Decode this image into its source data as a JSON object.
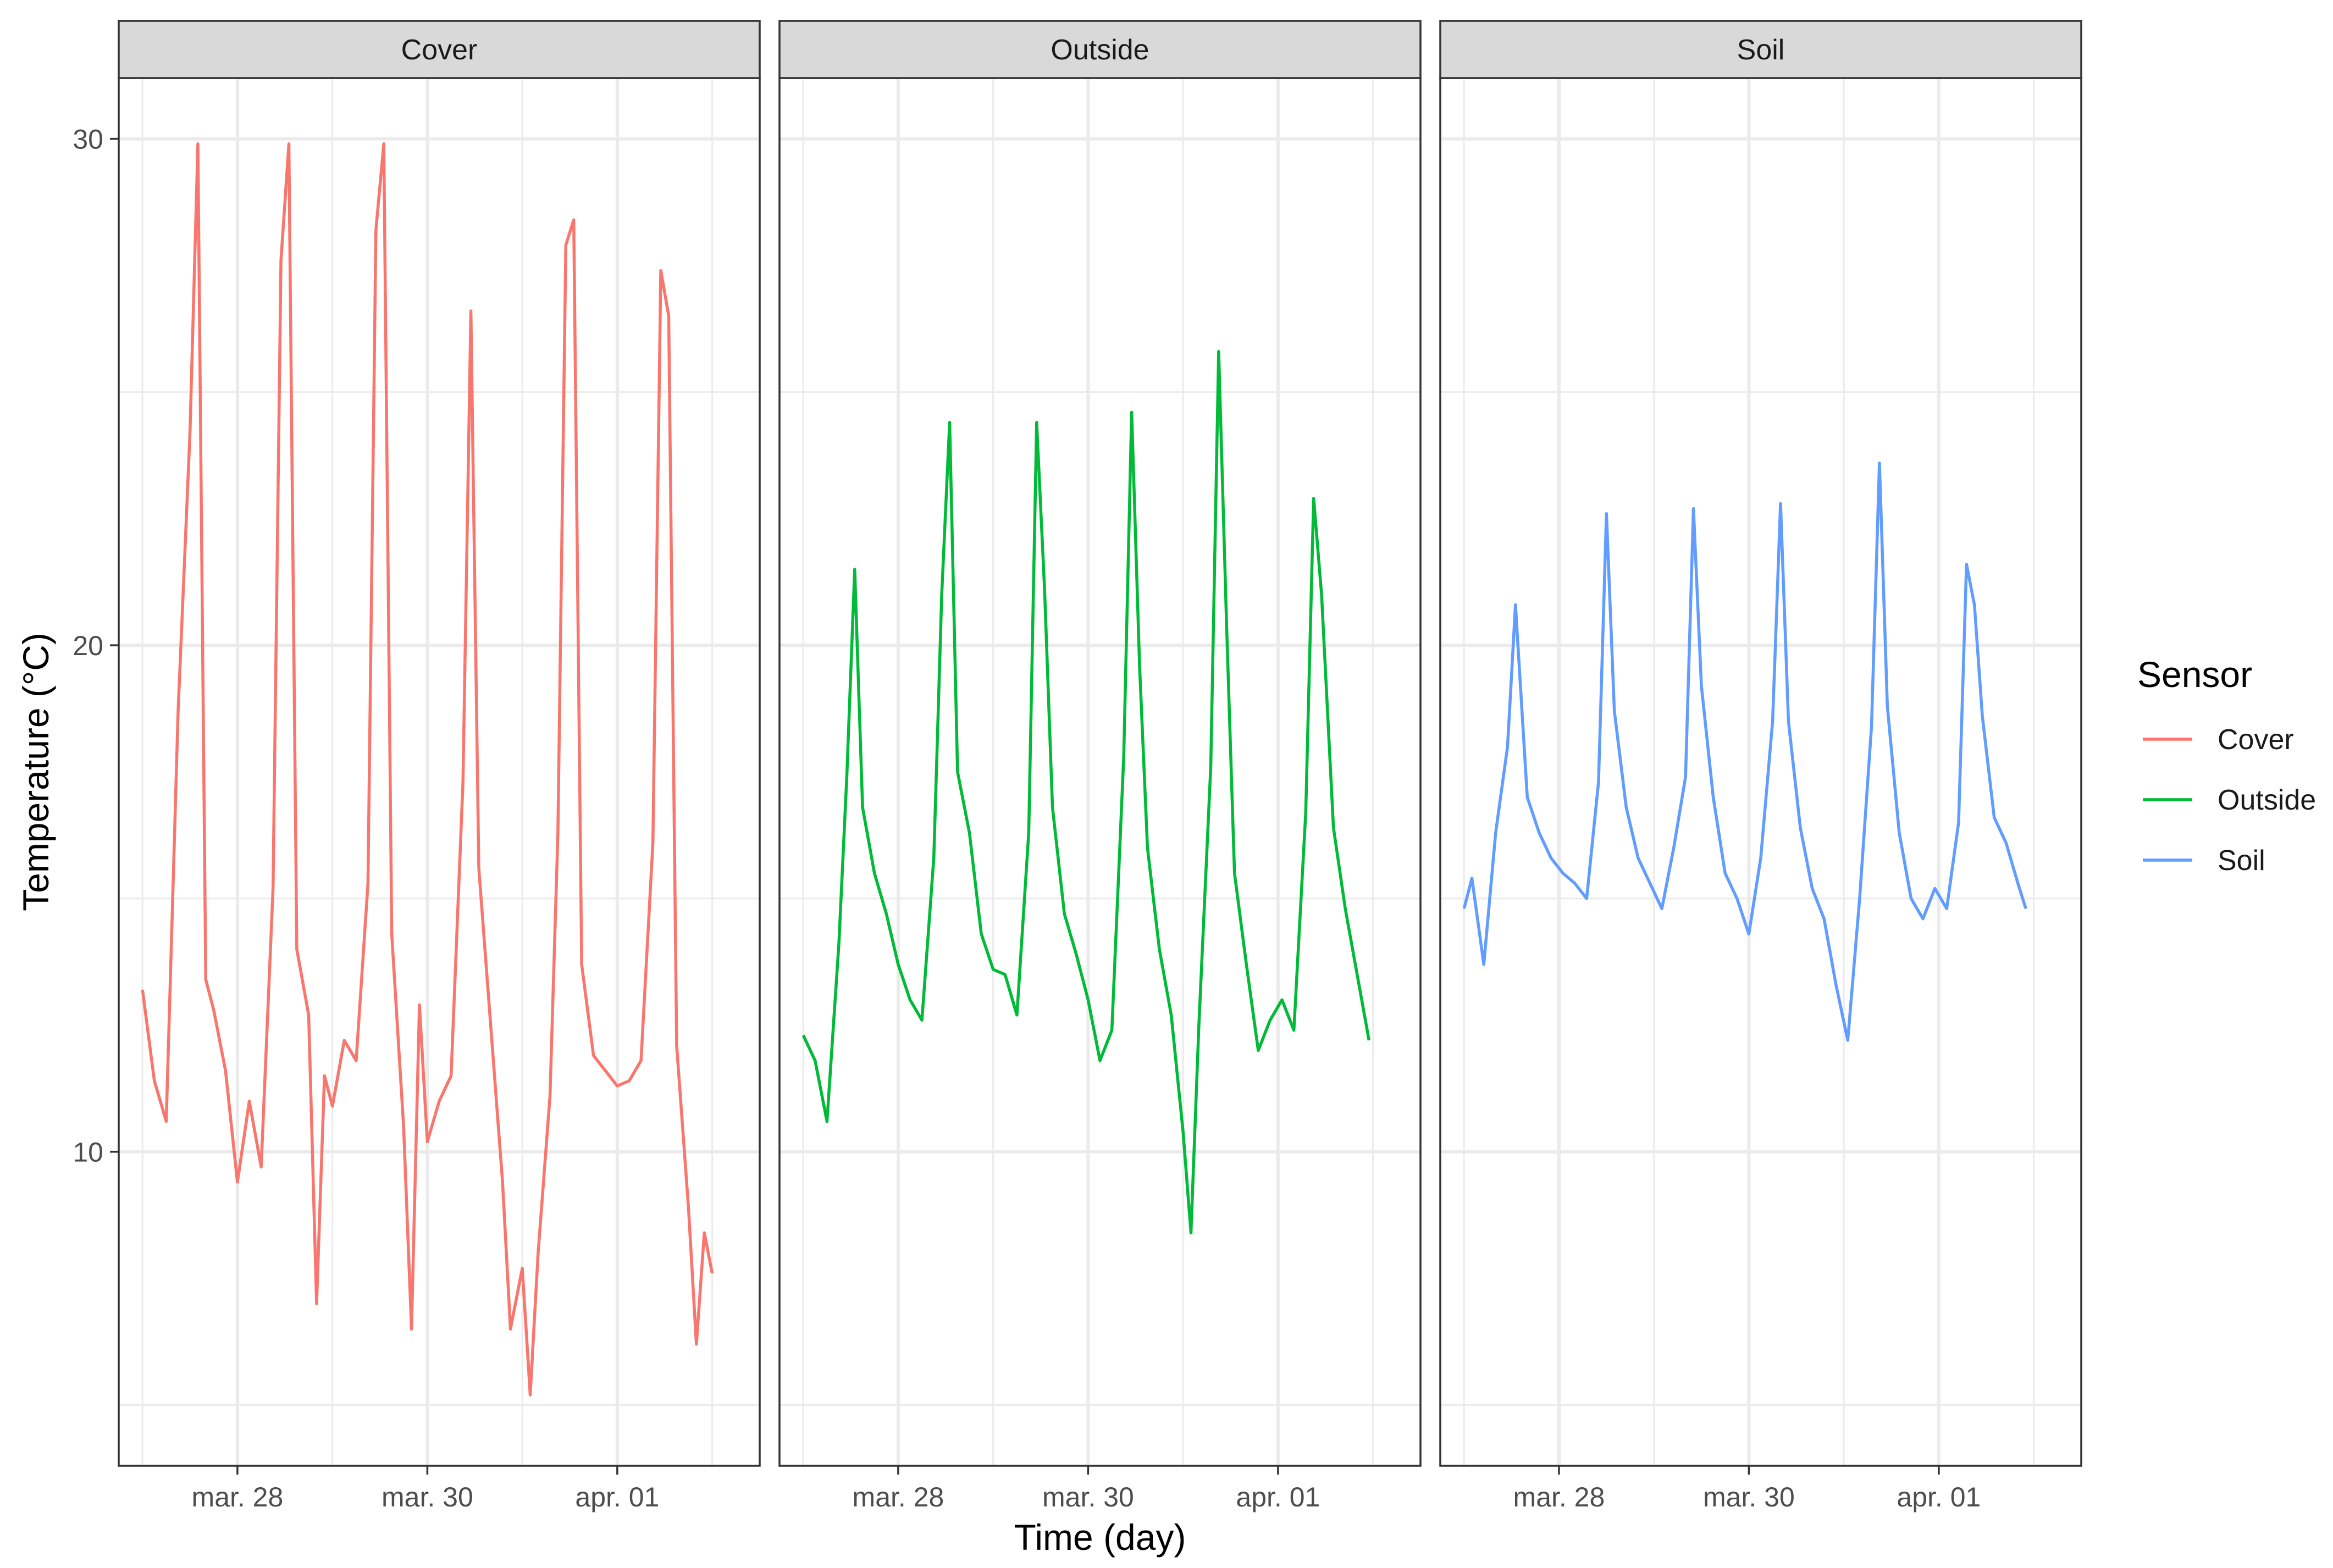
{
  "chart_data": {
    "type": "line",
    "xlabel": "Time (day)",
    "ylabel": "Temperature (°C)",
    "x_tick_labels": [
      "mar. 28",
      "mar. 30",
      "apr. 01"
    ],
    "x_tick_values": [
      "2021-03-28",
      "2021-03-30",
      "2021-04-01"
    ],
    "xlim": [
      "2021-03-26 18:00",
      "2021-04-02 12:00"
    ],
    "ylim": [
      3.8,
      31.2
    ],
    "y_ticks": [
      10,
      20,
      30
    ],
    "grid": true,
    "legend": {
      "title": "Sensor",
      "placement": "right",
      "entries": [
        "Cover",
        "Outside",
        "Soil"
      ]
    },
    "colors": {
      "Cover": "#F8766D",
      "Outside": "#00BA38",
      "Soil": "#619CFF"
    },
    "panels": [
      {
        "strip": "Cover",
        "series": "Cover",
        "points": [
          [
            "2021-03-27 00:00",
            13.2
          ],
          [
            "2021-03-27 03:00",
            11.4
          ],
          [
            "2021-03-27 06:00",
            10.6
          ],
          [
            "2021-03-27 09:00",
            18.7
          ],
          [
            "2021-03-27 12:00",
            24.2
          ],
          [
            "2021-03-27 14:00",
            29.9
          ],
          [
            "2021-03-27 16:00",
            13.4
          ],
          [
            "2021-03-27 18:00",
            12.8
          ],
          [
            "2021-03-27 21:00",
            11.6
          ],
          [
            "2021-03-28 00:00",
            9.4
          ],
          [
            "2021-03-28 03:00",
            11.0
          ],
          [
            "2021-03-28 06:00",
            9.7
          ],
          [
            "2021-03-28 09:00",
            15.2
          ],
          [
            "2021-03-28 11:00",
            27.6
          ],
          [
            "2021-03-28 13:00",
            29.9
          ],
          [
            "2021-03-28 15:00",
            14.0
          ],
          [
            "2021-03-28 18:00",
            12.7
          ],
          [
            "2021-03-28 20:00",
            7.0
          ],
          [
            "2021-03-28 22:00",
            11.5
          ],
          [
            "2021-03-29 00:00",
            10.9
          ],
          [
            "2021-03-29 03:00",
            12.2
          ],
          [
            "2021-03-29 06:00",
            11.8
          ],
          [
            "2021-03-29 09:00",
            15.3
          ],
          [
            "2021-03-29 11:00",
            28.2
          ],
          [
            "2021-03-29 13:00",
            29.9
          ],
          [
            "2021-03-29 15:00",
            14.3
          ],
          [
            "2021-03-29 18:00",
            10.5
          ],
          [
            "2021-03-29 20:00",
            6.5
          ],
          [
            "2021-03-29 22:00",
            12.9
          ],
          [
            "2021-03-30 00:00",
            10.2
          ],
          [
            "2021-03-30 03:00",
            11.0
          ],
          [
            "2021-03-30 06:00",
            11.5
          ],
          [
            "2021-03-30 09:00",
            17.3
          ],
          [
            "2021-03-30 11:00",
            26.6
          ],
          [
            "2021-03-30 13:00",
            15.6
          ],
          [
            "2021-03-30 16:00",
            12.5
          ],
          [
            "2021-03-30 19:00",
            9.4
          ],
          [
            "2021-03-30 21:00",
            6.5
          ],
          [
            "2021-03-31 00:00",
            7.7
          ],
          [
            "2021-03-31 02:00",
            5.2
          ],
          [
            "2021-03-31 04:00",
            8.0
          ],
          [
            "2021-03-31 07:00",
            11.1
          ],
          [
            "2021-03-31 09:00",
            16.3
          ],
          [
            "2021-03-31 11:00",
            27.9
          ],
          [
            "2021-03-31 13:00",
            28.4
          ],
          [
            "2021-03-31 15:00",
            13.7
          ],
          [
            "2021-03-31 18:00",
            11.9
          ],
          [
            "2021-03-31 21:00",
            11.6
          ],
          [
            "2021-04-01 00:00",
            11.3
          ],
          [
            "2021-04-01 03:00",
            11.4
          ],
          [
            "2021-04-01 06:00",
            11.8
          ],
          [
            "2021-04-01 09:00",
            16.1
          ],
          [
            "2021-04-01 11:00",
            27.4
          ],
          [
            "2021-04-01 13:00",
            26.5
          ],
          [
            "2021-04-01 15:00",
            12.1
          ],
          [
            "2021-04-01 18:00",
            8.9
          ],
          [
            "2021-04-01 20:00",
            6.2
          ],
          [
            "2021-04-01 22:00",
            8.4
          ],
          [
            "2021-04-02 00:00",
            7.6
          ]
        ]
      },
      {
        "strip": "Outside",
        "series": "Outside",
        "points": [
          [
            "2021-03-27 00:00",
            12.3
          ],
          [
            "2021-03-27 03:00",
            11.8
          ],
          [
            "2021-03-27 06:00",
            10.6
          ],
          [
            "2021-03-27 09:00",
            14.1
          ],
          [
            "2021-03-27 11:00",
            17.4
          ],
          [
            "2021-03-27 13:00",
            21.5
          ],
          [
            "2021-03-27 15:00",
            16.8
          ],
          [
            "2021-03-27 18:00",
            15.5
          ],
          [
            "2021-03-27 21:00",
            14.7
          ],
          [
            "2021-03-28 00:00",
            13.7
          ],
          [
            "2021-03-28 03:00",
            13.0
          ],
          [
            "2021-03-28 06:00",
            12.6
          ],
          [
            "2021-03-28 09:00",
            15.8
          ],
          [
            "2021-03-28 11:00",
            21.0
          ],
          [
            "2021-03-28 13:00",
            24.4
          ],
          [
            "2021-03-28 15:00",
            17.5
          ],
          [
            "2021-03-28 18:00",
            16.3
          ],
          [
            "2021-03-28 21:00",
            14.3
          ],
          [
            "2021-03-29 00:00",
            13.6
          ],
          [
            "2021-03-29 03:00",
            13.5
          ],
          [
            "2021-03-29 06:00",
            12.7
          ],
          [
            "2021-03-29 09:00",
            16.3
          ],
          [
            "2021-03-29 11:00",
            24.4
          ],
          [
            "2021-03-29 13:00",
            21.1
          ],
          [
            "2021-03-29 15:00",
            16.8
          ],
          [
            "2021-03-29 18:00",
            14.7
          ],
          [
            "2021-03-29 21:00",
            13.9
          ],
          [
            "2021-03-30 00:00",
            13.0
          ],
          [
            "2021-03-30 03:00",
            11.8
          ],
          [
            "2021-03-30 06:00",
            12.4
          ],
          [
            "2021-03-30 09:00",
            17.8
          ],
          [
            "2021-03-30 11:00",
            24.6
          ],
          [
            "2021-03-30 13:00",
            19.6
          ],
          [
            "2021-03-30 15:00",
            16.0
          ],
          [
            "2021-03-30 18:00",
            14.0
          ],
          [
            "2021-03-30 21:00",
            12.7
          ],
          [
            "2021-03-31 00:00",
            10.4
          ],
          [
            "2021-03-31 02:00",
            8.4
          ],
          [
            "2021-03-31 04:00",
            12.5
          ],
          [
            "2021-03-31 07:00",
            17.6
          ],
          [
            "2021-03-31 09:00",
            25.8
          ],
          [
            "2021-03-31 11:00",
            20.4
          ],
          [
            "2021-03-31 13:00",
            15.5
          ],
          [
            "2021-03-31 16:00",
            13.7
          ],
          [
            "2021-03-31 19:00",
            12.0
          ],
          [
            "2021-03-31 22:00",
            12.6
          ],
          [
            "2021-04-01 01:00",
            13.0
          ],
          [
            "2021-04-01 04:00",
            12.4
          ],
          [
            "2021-04-01 07:00",
            16.7
          ],
          [
            "2021-04-01 09:00",
            22.9
          ],
          [
            "2021-04-01 11:00",
            21.0
          ],
          [
            "2021-04-01 14:00",
            16.4
          ],
          [
            "2021-04-01 17:00",
            14.8
          ],
          [
            "2021-04-01 20:00",
            13.5
          ],
          [
            "2021-04-01 23:00",
            12.2
          ]
        ]
      },
      {
        "strip": "Soil",
        "series": "Soil",
        "points": [
          [
            "2021-03-27 00:00",
            14.8
          ],
          [
            "2021-03-27 02:00",
            15.4
          ],
          [
            "2021-03-27 05:00",
            13.7
          ],
          [
            "2021-03-27 08:00",
            16.3
          ],
          [
            "2021-03-27 11:00",
            18.0
          ],
          [
            "2021-03-27 13:00",
            20.8
          ],
          [
            "2021-03-27 16:00",
            17.0
          ],
          [
            "2021-03-27 19:00",
            16.3
          ],
          [
            "2021-03-27 22:00",
            15.8
          ],
          [
            "2021-03-28 01:00",
            15.5
          ],
          [
            "2021-03-28 04:00",
            15.3
          ],
          [
            "2021-03-28 07:00",
            15.0
          ],
          [
            "2021-03-28 10:00",
            17.3
          ],
          [
            "2021-03-28 12:00",
            22.6
          ],
          [
            "2021-03-28 14:00",
            18.7
          ],
          [
            "2021-03-28 17:00",
            16.8
          ],
          [
            "2021-03-28 20:00",
            15.8
          ],
          [
            "2021-03-28 23:00",
            15.3
          ],
          [
            "2021-03-29 02:00",
            14.8
          ],
          [
            "2021-03-29 05:00",
            16.0
          ],
          [
            "2021-03-29 08:00",
            17.4
          ],
          [
            "2021-03-29 10:00",
            22.7
          ],
          [
            "2021-03-29 12:00",
            19.2
          ],
          [
            "2021-03-29 15:00",
            17.0
          ],
          [
            "2021-03-29 18:00",
            15.5
          ],
          [
            "2021-03-29 21:00",
            15.0
          ],
          [
            "2021-03-30 00:00",
            14.3
          ],
          [
            "2021-03-30 03:00",
            15.8
          ],
          [
            "2021-03-30 06:00",
            18.5
          ],
          [
            "2021-03-30 08:00",
            22.8
          ],
          [
            "2021-03-30 10:00",
            18.5
          ],
          [
            "2021-03-30 13:00",
            16.4
          ],
          [
            "2021-03-30 16:00",
            15.2
          ],
          [
            "2021-03-30 19:00",
            14.6
          ],
          [
            "2021-03-30 22:00",
            13.3
          ],
          [
            "2021-03-31 01:00",
            12.2
          ],
          [
            "2021-03-31 04:00",
            15.0
          ],
          [
            "2021-03-31 07:00",
            18.4
          ],
          [
            "2021-03-31 09:00",
            23.6
          ],
          [
            "2021-03-31 11:00",
            18.8
          ],
          [
            "2021-03-31 14:00",
            16.3
          ],
          [
            "2021-03-31 17:00",
            15.0
          ],
          [
            "2021-03-31 20:00",
            14.6
          ],
          [
            "2021-03-31 23:00",
            15.2
          ],
          [
            "2021-04-01 02:00",
            14.8
          ],
          [
            "2021-04-01 05:00",
            16.5
          ],
          [
            "2021-04-01 07:00",
            21.6
          ],
          [
            "2021-04-01 09:00",
            20.8
          ],
          [
            "2021-04-01 11:00",
            18.6
          ],
          [
            "2021-04-01 14:00",
            16.6
          ],
          [
            "2021-04-01 17:00",
            16.1
          ],
          [
            "2021-04-01 20:00",
            15.3
          ],
          [
            "2021-04-01 22:00",
            14.8
          ]
        ]
      }
    ]
  }
}
